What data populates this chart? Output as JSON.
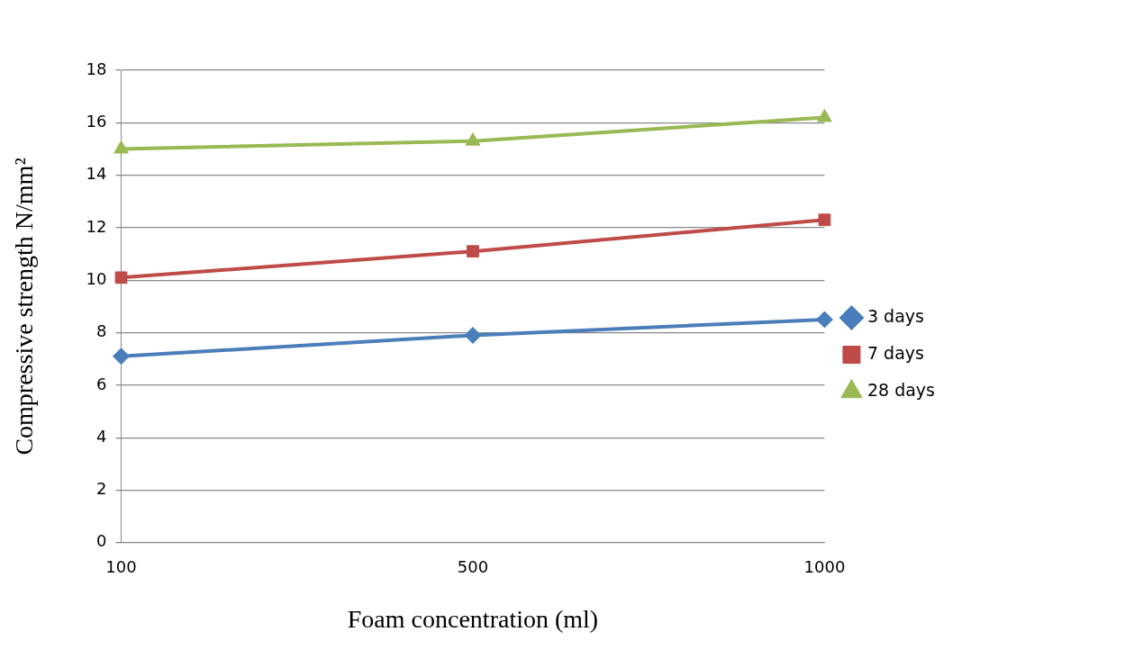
{
  "chart_data": {
    "type": "line",
    "xlabel": "Foam concentration (ml)",
    "ylabel": "Compressive strength N/mm²",
    "categories": [
      "100",
      "500",
      "1000"
    ],
    "series": [
      {
        "name": "3 days",
        "color": "#4a7ebb",
        "marker": "diamond",
        "values": [
          7.1,
          7.9,
          8.5
        ]
      },
      {
        "name": "7 days",
        "color": "#be4b48",
        "marker": "square",
        "values": [
          10.1,
          11.1,
          12.3
        ]
      },
      {
        "name": "28 days",
        "color": "#98b954",
        "marker": "triangle",
        "values": [
          15.0,
          15.3,
          16.2
        ]
      }
    ],
    "ylim": [
      0,
      18
    ],
    "yticks": [
      0,
      2,
      4,
      6,
      8,
      10,
      12,
      14,
      16,
      18
    ],
    "grid": "y",
    "legend": "right",
    "line_style": "solid"
  }
}
